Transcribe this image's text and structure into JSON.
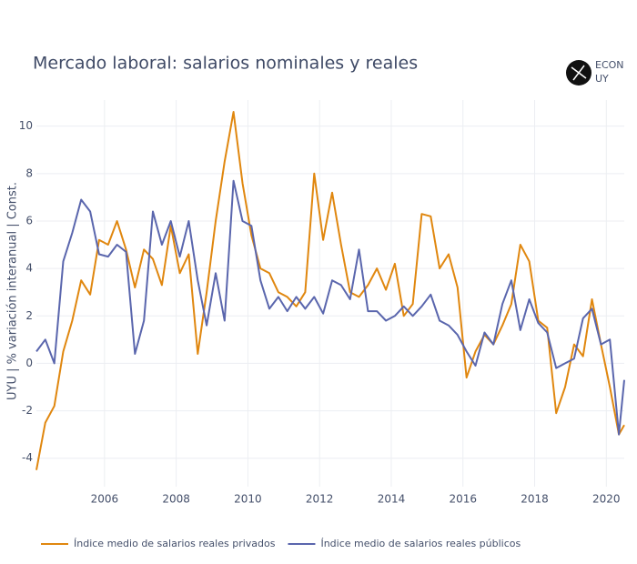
{
  "chart_data": {
    "type": "line",
    "title": "Mercado laboral: salarios nominales y reales",
    "logo": [
      "ECON",
      "UY"
    ],
    "y_label": "UYU | % variación interanual | Const.",
    "x": [
      2004.1,
      2004.35,
      2004.6,
      2004.85,
      2005.1,
      2005.35,
      2005.6,
      2005.85,
      2006.1,
      2006.35,
      2006.6,
      2006.85,
      2007.1,
      2007.35,
      2007.6,
      2007.85,
      2008.1,
      2008.35,
      2008.6,
      2008.85,
      2009.1,
      2009.35,
      2009.6,
      2009.85,
      2010.1,
      2010.35,
      2010.6,
      2010.85,
      2011.1,
      2011.35,
      2011.6,
      2011.85,
      2012.1,
      2012.35,
      2012.6,
      2012.85,
      2013.1,
      2013.35,
      2013.6,
      2013.85,
      2014.1,
      2014.35,
      2014.6,
      2014.85,
      2015.1,
      2015.35,
      2015.6,
      2015.85,
      2016.1,
      2016.35,
      2016.6,
      2016.85,
      2017.1,
      2017.35,
      2017.6,
      2017.85,
      2018.1,
      2018.35,
      2018.6,
      2018.85,
      2019.1,
      2019.35,
      2019.6,
      2019.85,
      2020.1,
      2020.35,
      2020.5
    ],
    "series": [
      {
        "name": "Índice medio de salarios reales privados",
        "color": "#e0870f",
        "values": [
          -4.5,
          -2.5,
          -1.8,
          0.5,
          1.8,
          3.5,
          2.9,
          5.2,
          5.0,
          6.0,
          4.8,
          3.2,
          4.8,
          4.4,
          3.3,
          5.8,
          3.8,
          4.6,
          0.4,
          3.0,
          6.0,
          8.5,
          10.6,
          7.6,
          5.4,
          4.0,
          3.8,
          3.0,
          2.8,
          2.4,
          3.0,
          8.0,
          5.2,
          7.2,
          5.0,
          3.0,
          2.8,
          3.3,
          4.0,
          3.1,
          4.2,
          2.0,
          2.5,
          6.3,
          6.2,
          4.0,
          4.6,
          3.2,
          -0.6,
          0.5,
          1.2,
          0.8,
          1.6,
          2.5,
          5.0,
          4.3,
          1.8,
          1.5,
          -2.1,
          -1.0,
          0.8,
          0.3,
          2.7,
          0.8,
          -1.0,
          -3.0,
          -2.6
        ]
      },
      {
        "name": "Índice medio de salarios reales públicos",
        "color": "#5a66ad",
        "values": [
          0.5,
          1.0,
          0.0,
          4.3,
          5.5,
          6.9,
          6.4,
          4.6,
          4.5,
          5.0,
          4.7,
          0.4,
          1.8,
          6.4,
          5.0,
          6.0,
          4.5,
          6.0,
          3.5,
          1.6,
          3.8,
          1.8,
          7.7,
          6.0,
          5.8,
          3.5,
          2.3,
          2.8,
          2.2,
          2.8,
          2.3,
          2.8,
          2.1,
          3.5,
          3.3,
          2.7,
          4.8,
          2.2,
          2.2,
          1.8,
          2.0,
          2.4,
          2.0,
          2.4,
          2.9,
          1.8,
          1.6,
          1.2,
          0.5,
          -0.1,
          1.3,
          0.8,
          2.5,
          3.5,
          1.4,
          2.7,
          1.7,
          1.3,
          -0.2,
          0.0,
          0.2,
          1.9,
          2.3,
          0.8,
          1.0,
          -3.0,
          -0.7
        ]
      }
    ],
    "xlim": [
      2004.1,
      2020.5
    ],
    "ylim": [
      -5.2,
      11.1
    ],
    "xticks": [
      2006,
      2008,
      2010,
      2012,
      2014,
      2016,
      2018,
      2020
    ],
    "yticks": [
      -4,
      -2,
      0,
      2,
      4,
      6,
      8,
      10
    ],
    "grid": true,
    "legend": "bottom-left"
  }
}
